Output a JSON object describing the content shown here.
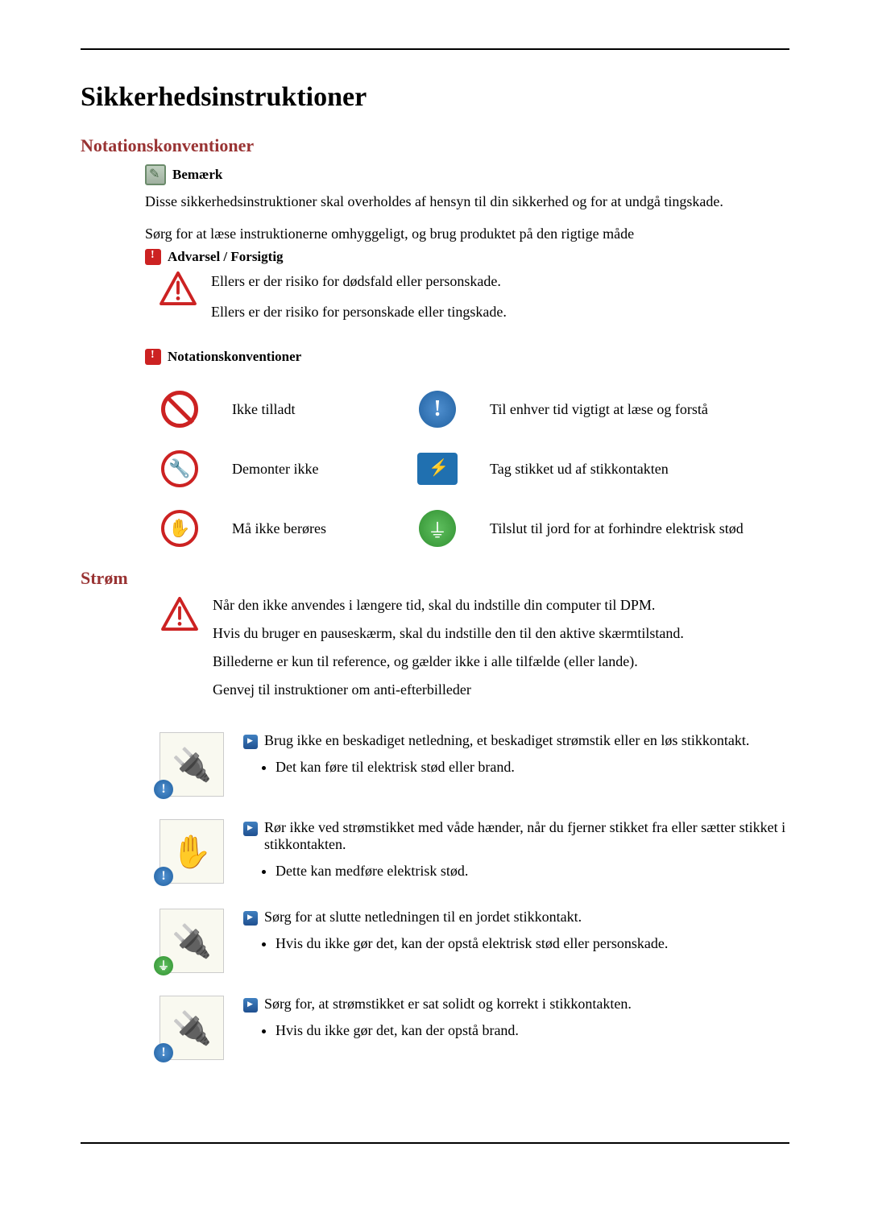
{
  "title": "Sikkerhedsinstruktioner",
  "section_notation": "Notationskonventioner",
  "remark_label": "Bemærk",
  "intro_line1": "Disse sikkerhedsinstruktioner skal overholdes af hensyn til din sikkerhed og for at undgå tingskade.",
  "intro_line2": "Sørg for at læse instruktionerne omhyggeligt, og brug produktet på den rigtige måde",
  "warning_label": "Advarsel / Forsigtig",
  "warn_text1": "Ellers er der risiko for dødsfald eller personskade.",
  "warn_text2": "Ellers er der risiko for personskade eller tingskade.",
  "notation_header": "Notationskonventioner",
  "notation_items": {
    "prohibit": "Ikke tilladt",
    "important": "Til enhver tid vigtigt at læse og forstå",
    "disassemble": "Demonter ikke",
    "unplug": "Tag stikket ud af stikkontakten",
    "notouch": "Må ikke berøres",
    "ground": "Tilslut til jord for at forhindre elektrisk stød"
  },
  "section_power": "Strøm",
  "power_intro": {
    "p1": "Når den ikke anvendes i længere tid, skal du indstille din computer til DPM.",
    "p2": "Hvis du bruger en pauseskærm, skal du indstille den til den aktive skærmtilstand.",
    "p3": "Billederne er kun til reference, og gælder ikke i alle tilfælde (eller lande).",
    "p4": "Genvej til instruktioner om anti-efterbilleder"
  },
  "instructions": [
    {
      "heading": "Brug ikke en beskadiget netledning, et beskadiget strømstik eller en løs stikkontakt.",
      "bullets": [
        "Det kan føre til elektrisk stød eller brand."
      ],
      "glyph": "🔌",
      "badge": "info"
    },
    {
      "heading": "Rør ikke ved strømstikket med våde hænder, når du fjerner stikket fra eller sætter stikket i stikkontakten.",
      "bullets": [
        "Dette kan medføre elektrisk stød."
      ],
      "glyph": "✋",
      "badge": "info"
    },
    {
      "heading": "Sørg for at slutte netledningen til en jordet stikkontakt.",
      "bullets": [
        "Hvis du ikke gør det, kan der opstå elektrisk stød eller personskade."
      ],
      "glyph": "🔌",
      "badge": "ground"
    },
    {
      "heading": "Sørg for, at strømstikket er sat solidt og korrekt i stikkontakten.",
      "bullets": [
        "Hvis du ikke gør det, kan der opstå brand."
      ],
      "glyph": "🔌",
      "badge": "info"
    }
  ],
  "colors": {
    "heading_red": "#993333",
    "alert_red": "#cc2222",
    "info_blue": "#2060a0",
    "ground_green": "#309030"
  }
}
